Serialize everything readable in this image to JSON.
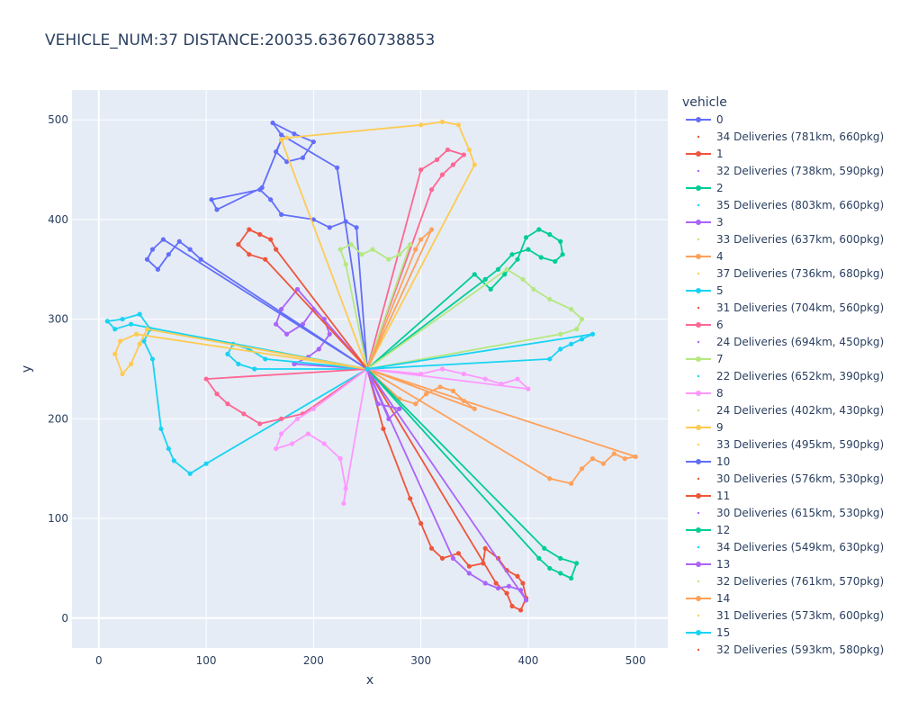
{
  "chart_data": {
    "type": "scatter",
    "title": "VEHICLE_NUM:37 DISTANCE:20035.636760738853",
    "xlabel": "x",
    "ylabel": "y",
    "xlim": [
      -25,
      530
    ],
    "ylim": [
      -30,
      530
    ],
    "x_ticks": [
      0,
      100,
      200,
      300,
      400,
      500
    ],
    "y_ticks": [
      0,
      100,
      200,
      300,
      400,
      500
    ],
    "grid": true,
    "legend_title": "vehicle",
    "legend_position": "right",
    "depot": [
      250,
      250
    ],
    "palette": [
      "#636efa",
      "#EF553B",
      "#00cc96",
      "#ab63fa",
      "#FFA15A",
      "#19d3f3",
      "#FF6692",
      "#B6E880",
      "#FF97FF",
      "#FECB52"
    ],
    "series": [
      {
        "name": "0",
        "summary": "34 Deliveries (781km, 660pkg)",
        "color": "#636efa",
        "points": [
          [
            250,
            250
          ],
          [
            222,
            452
          ],
          [
            170,
            485
          ],
          [
            162,
            497
          ],
          [
            182,
            486
          ],
          [
            200,
            478
          ],
          [
            190,
            462
          ],
          [
            175,
            458
          ],
          [
            165,
            468
          ],
          [
            170,
            480
          ],
          [
            152,
            432
          ],
          [
            110,
            410
          ],
          [
            105,
            420
          ],
          [
            150,
            430
          ],
          [
            160,
            420
          ],
          [
            170,
            405
          ],
          [
            200,
            400
          ],
          [
            215,
            392
          ],
          [
            230,
            398
          ],
          [
            240,
            392
          ],
          [
            250,
            250
          ]
        ]
      },
      {
        "name": "1",
        "summary": "32 Deliveries (738km, 590pkg)",
        "color": "#EF553B",
        "points": [
          [
            250,
            250
          ],
          [
            265,
            190
          ],
          [
            290,
            120
          ],
          [
            300,
            95
          ],
          [
            310,
            70
          ],
          [
            320,
            60
          ],
          [
            335,
            65
          ],
          [
            345,
            52
          ],
          [
            358,
            55
          ],
          [
            360,
            70
          ],
          [
            372,
            60
          ],
          [
            380,
            48
          ],
          [
            390,
            42
          ],
          [
            395,
            35
          ],
          [
            398,
            20
          ],
          [
            393,
            8
          ],
          [
            385,
            12
          ],
          [
            380,
            25
          ],
          [
            370,
            35
          ],
          [
            250,
            250
          ]
        ]
      },
      {
        "name": "2",
        "summary": "35 Deliveries (803km, 660pkg)",
        "color": "#00cc96",
        "points": [
          [
            250,
            250
          ],
          [
            350,
            345
          ],
          [
            365,
            330
          ],
          [
            378,
            345
          ],
          [
            390,
            360
          ],
          [
            398,
            382
          ],
          [
            410,
            390
          ],
          [
            420,
            385
          ],
          [
            430,
            378
          ],
          [
            432,
            365
          ],
          [
            425,
            358
          ],
          [
            412,
            362
          ],
          [
            400,
            370
          ],
          [
            385,
            365
          ],
          [
            372,
            350
          ],
          [
            360,
            340
          ],
          [
            250,
            250
          ]
        ]
      },
      {
        "name": "3",
        "summary": "33 Deliveries (637km, 600pkg)",
        "color": "#ab63fa",
        "points": [
          [
            250,
            250
          ],
          [
            185,
            330
          ],
          [
            170,
            310
          ],
          [
            165,
            295
          ],
          [
            175,
            285
          ],
          [
            190,
            295
          ],
          [
            200,
            310
          ],
          [
            210,
            300
          ],
          [
            215,
            285
          ],
          [
            205,
            270
          ],
          [
            195,
            262
          ],
          [
            182,
            255
          ],
          [
            250,
            250
          ],
          [
            330,
            60
          ],
          [
            345,
            45
          ],
          [
            360,
            35
          ],
          [
            372,
            30
          ],
          [
            382,
            32
          ],
          [
            393,
            28
          ],
          [
            398,
            18
          ],
          [
            250,
            250
          ]
        ]
      },
      {
        "name": "4",
        "summary": "37 Deliveries (736km, 680pkg)",
        "color": "#FFA15A",
        "points": [
          [
            250,
            250
          ],
          [
            280,
            220
          ],
          [
            295,
            215
          ],
          [
            305,
            225
          ],
          [
            318,
            232
          ],
          [
            330,
            228
          ],
          [
            340,
            218
          ],
          [
            350,
            210
          ],
          [
            250,
            250
          ],
          [
            420,
            140
          ],
          [
            440,
            135
          ],
          [
            450,
            150
          ],
          [
            460,
            160
          ],
          [
            470,
            155
          ],
          [
            480,
            165
          ],
          [
            490,
            160
          ],
          [
            500,
            162
          ],
          [
            250,
            250
          ]
        ]
      },
      {
        "name": "5",
        "summary": "31 Deliveries (704km, 560pkg)",
        "color": "#19d3f3",
        "points": [
          [
            250,
            250
          ],
          [
            155,
            260
          ],
          [
            140,
            270
          ],
          [
            125,
            275
          ],
          [
            120,
            265
          ],
          [
            130,
            255
          ],
          [
            145,
            250
          ],
          [
            250,
            250
          ],
          [
            30,
            295
          ],
          [
            15,
            290
          ],
          [
            8,
            298
          ],
          [
            22,
            300
          ],
          [
            38,
            305
          ],
          [
            48,
            290
          ],
          [
            42,
            278
          ],
          [
            50,
            260
          ],
          [
            58,
            190
          ],
          [
            65,
            170
          ],
          [
            70,
            158
          ],
          [
            85,
            145
          ],
          [
            100,
            155
          ],
          [
            250,
            250
          ]
        ]
      },
      {
        "name": "6",
        "summary": "24 Deliveries (694km, 450pkg)",
        "color": "#FF6692",
        "points": [
          [
            250,
            250
          ],
          [
            190,
            205
          ],
          [
            170,
            200
          ],
          [
            150,
            195
          ],
          [
            135,
            205
          ],
          [
            120,
            215
          ],
          [
            110,
            225
          ],
          [
            100,
            240
          ],
          [
            250,
            250
          ],
          [
            310,
            430
          ],
          [
            320,
            445
          ],
          [
            330,
            455
          ],
          [
            340,
            465
          ],
          [
            325,
            470
          ],
          [
            315,
            460
          ],
          [
            300,
            450
          ],
          [
            250,
            250
          ]
        ]
      },
      {
        "name": "7",
        "summary": "22 Deliveries (652km, 390pkg)",
        "color": "#B6E880",
        "points": [
          [
            250,
            250
          ],
          [
            380,
            350
          ],
          [
            395,
            340
          ],
          [
            405,
            330
          ],
          [
            420,
            320
          ],
          [
            440,
            310
          ],
          [
            450,
            300
          ],
          [
            445,
            290
          ],
          [
            430,
            285
          ],
          [
            250,
            250
          ],
          [
            230,
            355
          ],
          [
            225,
            370
          ],
          [
            235,
            375
          ],
          [
            245,
            365
          ],
          [
            255,
            370
          ],
          [
            270,
            360
          ],
          [
            280,
            365
          ],
          [
            290,
            375
          ],
          [
            250,
            250
          ]
        ]
      },
      {
        "name": "8",
        "summary": "24 Deliveries (402km, 430pkg)",
        "color": "#FF97FF",
        "points": [
          [
            250,
            250
          ],
          [
            200,
            210
          ],
          [
            185,
            200
          ],
          [
            170,
            185
          ],
          [
            165,
            170
          ],
          [
            180,
            175
          ],
          [
            195,
            185
          ],
          [
            210,
            175
          ],
          [
            225,
            160
          ],
          [
            230,
            130
          ],
          [
            228,
            115
          ],
          [
            250,
            250
          ],
          [
            300,
            245
          ],
          [
            320,
            250
          ],
          [
            340,
            245
          ],
          [
            360,
            240
          ],
          [
            375,
            235
          ],
          [
            390,
            240
          ],
          [
            400,
            230
          ],
          [
            250,
            250
          ]
        ]
      },
      {
        "name": "9",
        "summary": "33 Deliveries (495km, 590pkg)",
        "color": "#FECB52",
        "points": [
          [
            250,
            250
          ],
          [
            45,
            290
          ],
          [
            38,
            275
          ],
          [
            30,
            255
          ],
          [
            22,
            245
          ],
          [
            15,
            265
          ],
          [
            20,
            278
          ],
          [
            35,
            285
          ],
          [
            250,
            250
          ],
          [
            170,
            480
          ],
          [
            175,
            482
          ],
          [
            300,
            495
          ],
          [
            320,
            498
          ],
          [
            335,
            495
          ],
          [
            345,
            470
          ],
          [
            350,
            455
          ],
          [
            250,
            250
          ]
        ]
      },
      {
        "name": "10",
        "summary": "30 Deliveries (576km, 530pkg)",
        "color": "#636efa",
        "points": [
          [
            250,
            250
          ],
          [
            60,
            380
          ],
          [
            50,
            370
          ],
          [
            45,
            360
          ],
          [
            55,
            350
          ],
          [
            65,
            365
          ],
          [
            75,
            378
          ],
          [
            85,
            370
          ],
          [
            95,
            360
          ],
          [
            250,
            250
          ]
        ]
      },
      {
        "name": "11",
        "summary": "30 Deliveries (615km, 530pkg)",
        "color": "#EF553B",
        "points": [
          [
            250,
            250
          ],
          [
            165,
            370
          ],
          [
            160,
            380
          ],
          [
            150,
            385
          ],
          [
            140,
            390
          ],
          [
            130,
            375
          ],
          [
            140,
            365
          ],
          [
            155,
            360
          ],
          [
            250,
            250
          ]
        ]
      },
      {
        "name": "12",
        "summary": "34 Deliveries (549km, 630pkg)",
        "color": "#00cc96",
        "points": [
          [
            250,
            250
          ],
          [
            410,
            60
          ],
          [
            420,
            50
          ],
          [
            430,
            45
          ],
          [
            440,
            40
          ],
          [
            445,
            55
          ],
          [
            430,
            60
          ],
          [
            415,
            70
          ],
          [
            250,
            250
          ]
        ]
      },
      {
        "name": "13",
        "summary": "32 Deliveries (761km, 570pkg)",
        "color": "#ab63fa",
        "points": [
          [
            250,
            250
          ],
          [
            270,
            200
          ],
          [
            280,
            210
          ],
          [
            260,
            215
          ],
          [
            250,
            250
          ]
        ]
      },
      {
        "name": "14",
        "summary": "31 Deliveries (573km, 600pkg)",
        "color": "#FFA15A",
        "points": [
          [
            250,
            250
          ],
          [
            310,
            390
          ],
          [
            300,
            380
          ],
          [
            295,
            370
          ],
          [
            250,
            250
          ]
        ]
      },
      {
        "name": "15",
        "summary": "32 Deliveries (593km, 580pkg)",
        "color": "#19d3f3",
        "points": [
          [
            250,
            250
          ],
          [
            420,
            260
          ],
          [
            430,
            270
          ],
          [
            440,
            275
          ],
          [
            450,
            280
          ],
          [
            460,
            285
          ],
          [
            250,
            250
          ]
        ]
      }
    ]
  }
}
